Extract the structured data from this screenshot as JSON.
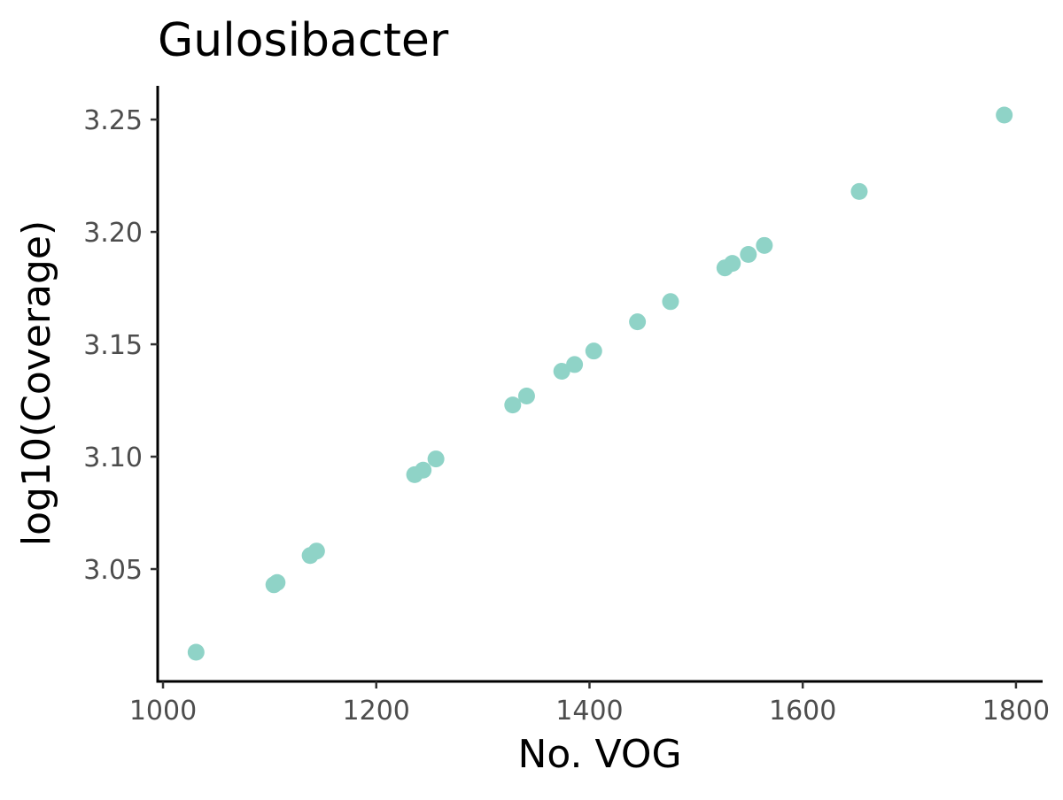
{
  "chart_data": {
    "type": "scatter",
    "title": "Gulosibacter",
    "xlabel": "No. VOG",
    "ylabel": "log10(Coverage)",
    "xlim": [
      995,
      1825
    ],
    "ylim": [
      3.0,
      3.265
    ],
    "x_ticks": [
      1000,
      1200,
      1400,
      1600,
      1800
    ],
    "x_tick_labels": [
      "1000",
      "1200",
      "1400",
      "1600",
      "1800"
    ],
    "y_ticks": [
      3.05,
      3.1,
      3.15,
      3.2,
      3.25
    ],
    "y_tick_labels": [
      "3.05",
      "3.10",
      "3.15",
      "3.20",
      "3.25"
    ],
    "grid": false,
    "legend": "none",
    "point_color": "#8fd3c7",
    "series": [
      {
        "x": [
          1031,
          1104,
          1107,
          1138,
          1144,
          1236,
          1244,
          1256,
          1328,
          1341,
          1374,
          1386,
          1404,
          1445,
          1476,
          1527,
          1534,
          1549,
          1564,
          1653,
          1789
        ],
        "y": [
          3.013,
          3.043,
          3.044,
          3.056,
          3.058,
          3.092,
          3.094,
          3.099,
          3.123,
          3.127,
          3.138,
          3.141,
          3.147,
          3.16,
          3.169,
          3.184,
          3.186,
          3.19,
          3.194,
          3.218,
          3.252
        ]
      }
    ]
  }
}
